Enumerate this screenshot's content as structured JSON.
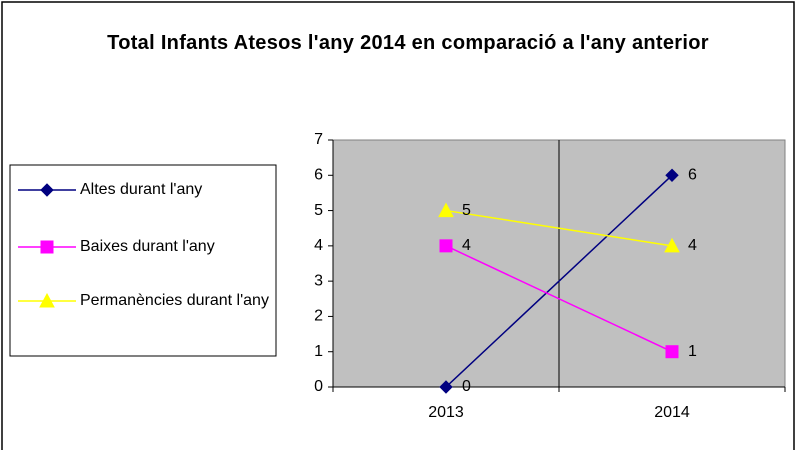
{
  "chart_data": {
    "type": "line",
    "title": "Total Infants Atesos l'any 2014 en comparació a l'any anterior",
    "categories": [
      "2013",
      "2014"
    ],
    "series": [
      {
        "name": "Altes durant l'any",
        "color": "#000080",
        "marker": "diamond",
        "values": [
          0,
          6
        ]
      },
      {
        "name": "Baixes durant l'any",
        "color": "#ff00ff",
        "marker": "square",
        "values": [
          4,
          1
        ]
      },
      {
        "name": "Permanències durant l'any",
        "color": "#ffff00",
        "marker": "triangle",
        "values": [
          5,
          4
        ]
      }
    ],
    "ylim": [
      0,
      7
    ],
    "yticks": [
      0,
      1,
      2,
      3,
      4,
      5,
      6,
      7
    ],
    "plot_background": "#c0c0c0",
    "legend": "left"
  }
}
